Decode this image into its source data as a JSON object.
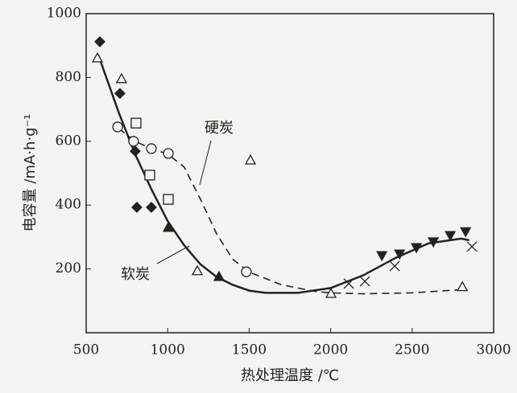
{
  "chart_data": {
    "type": "scatter",
    "xlabel": "热处理温度 /℃",
    "ylabel": "电容量 /mA·h·g⁻¹",
    "xlim": [
      500,
      3000
    ],
    "xticks": [
      500,
      1000,
      1500,
      2000,
      2500,
      3000
    ],
    "ylim": [
      0,
      1000
    ],
    "yticks": [
      200,
      400,
      600,
      800,
      1000
    ],
    "annotations": [
      "硬炭",
      "软炭"
    ],
    "series": [
      {
        "marker": "diamond",
        "filled": true,
        "color": "#222",
        "x": [
          584,
          707,
          801,
          811,
          900
        ],
        "values": [
          912,
          750,
          569,
          393,
          393
        ]
      },
      {
        "marker": "triangle",
        "filled": false,
        "color": "#222",
        "x": [
          569,
          717,
          1182,
          1508,
          2002,
          2808
        ],
        "values": [
          861,
          796,
          194,
          541,
          123,
          144
        ]
      },
      {
        "marker": "circle",
        "filled": false,
        "color": "#222",
        "x": [
          693,
          791,
          900,
          1004,
          1483
        ],
        "values": [
          645,
          600,
          577,
          562,
          191
        ]
      },
      {
        "marker": "square",
        "filled": false,
        "color": "#222",
        "x": [
          806,
          890,
          1004
        ],
        "values": [
          657,
          494,
          418
        ]
      },
      {
        "marker": "triangle",
        "filled": true,
        "color": "#222",
        "x": [
          1004,
          1315
        ],
        "values": [
          330,
          176
        ]
      },
      {
        "marker": "cross",
        "filled": false,
        "color": "#222",
        "x": [
          2111,
          2210,
          2393,
          2867
        ],
        "values": [
          154,
          161,
          209,
          270
        ]
      },
      {
        "marker": "triangle-down",
        "filled": true,
        "color": "#222",
        "x": [
          2314,
          2423,
          2526,
          2630,
          2734,
          2828
        ],
        "values": [
          242,
          247,
          267,
          285,
          305,
          317
        ]
      }
    ],
    "curves": [
      {
        "style": "solid",
        "color": "#222",
        "x": [
          575,
          700,
          800,
          900,
          1000,
          1100,
          1200,
          1300,
          1400,
          1500,
          1600,
          1800,
          2000,
          2200,
          2400,
          2600,
          2800,
          2850
        ],
        "values": [
          870,
          690,
          560,
          450,
          350,
          275,
          215,
          175,
          150,
          132,
          125,
          125,
          140,
          180,
          235,
          280,
          295,
          290
        ]
      },
      {
        "style": "dashed",
        "color": "#222",
        "x": [
          700,
          800,
          900,
          1000,
          1100,
          1200,
          1300,
          1400,
          1500,
          1700,
          1900,
          2000,
          2200,
          2500,
          2800
        ],
        "values": [
          640,
          600,
          577,
          560,
          520,
          420,
          310,
          230,
          190,
          150,
          130,
          125,
          122,
          125,
          135
        ]
      }
    ]
  }
}
